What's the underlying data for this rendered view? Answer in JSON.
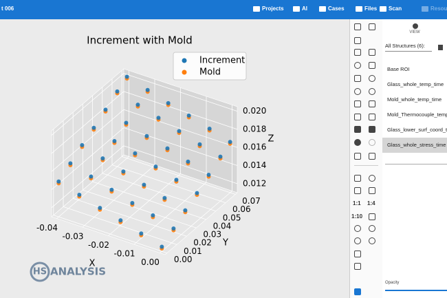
{
  "header": {
    "title": "t 006",
    "nav": [
      "Projects",
      "AI",
      "Cases",
      "Files",
      "Scan",
      "Resou"
    ]
  },
  "chart_data": {
    "type": "scatter3d",
    "title": "Increment with Mold",
    "xlabel": "X",
    "ylabel": "Y",
    "zlabel": "Z",
    "xlim": [
      -0.042,
      0.002
    ],
    "ylim": [
      -0.002,
      0.072
    ],
    "zlim": [
      0.011,
      0.0205
    ],
    "xticks": [
      -0.04,
      -0.03,
      -0.02,
      -0.01,
      {
        "value": 0,
        "label": "0.00"
      }
    ],
    "yticks": [
      {
        "value": 0,
        "label": "0.00"
      },
      0.01,
      0.02,
      0.03,
      0.04,
      0.05,
      0.06,
      0.07
    ],
    "zticks": [
      0.012,
      0.014,
      0.016,
      0.018,
      {
        "value": 0.02,
        "label": "0.020"
      }
    ],
    "grid": true,
    "series": [
      {
        "name": "Increment",
        "color": "#1f77b4",
        "x": [
          -0.04,
          -0.04,
          -0.04,
          -0.04,
          -0.04,
          -0.04,
          -0.04,
          -0.032,
          -0.032,
          -0.032,
          -0.032,
          -0.032,
          -0.032,
          -0.032,
          -0.024,
          -0.024,
          -0.024,
          -0.024,
          -0.024,
          -0.024,
          -0.024,
          -0.016,
          -0.016,
          -0.016,
          -0.016,
          -0.016,
          -0.016,
          -0.016,
          -0.008,
          -0.008,
          -0.008,
          -0.008,
          -0.008,
          -0.008,
          -0.008,
          0,
          0,
          0,
          0,
          0,
          0,
          0
        ],
        "y": [
          0,
          0.012,
          0.024,
          0.036,
          0.048,
          0.06,
          0.07,
          0,
          0.012,
          0.024,
          0.036,
          0.048,
          0.06,
          0.07,
          0,
          0.012,
          0.024,
          0.036,
          0.048,
          0.06,
          0.07,
          0,
          0.012,
          0.024,
          0.036,
          0.048,
          0.06,
          0.07,
          0,
          0.012,
          0.024,
          0.036,
          0.048,
          0.06,
          0.07,
          0,
          0.012,
          0.024,
          0.036,
          0.048,
          0.06,
          0.07
        ],
        "z": [
          0.0149,
          0.0158,
          0.0167,
          0.0175,
          0.0184,
          0.0193,
          0.02,
          0.0142,
          0.0151,
          0.016,
          0.0168,
          0.0177,
          0.0186,
          0.0193,
          0.0135,
          0.0144,
          0.0153,
          0.0162,
          0.017,
          0.0179,
          0.0186,
          0.0129,
          0.0137,
          0.0146,
          0.0155,
          0.0164,
          0.0172,
          0.018,
          0.0122,
          0.0131,
          0.0139,
          0.0148,
          0.0157,
          0.0165,
          0.0173,
          0.0115,
          0.0124,
          0.0133,
          0.0141,
          0.015,
          0.0159,
          0.0166
        ]
      },
      {
        "name": "Mold",
        "color": "#ff7f0e",
        "x": [
          -0.04,
          -0.04,
          -0.04,
          -0.04,
          -0.04,
          -0.04,
          -0.04,
          -0.032,
          -0.032,
          -0.032,
          -0.032,
          -0.032,
          -0.032,
          -0.032,
          -0.024,
          -0.024,
          -0.024,
          -0.024,
          -0.024,
          -0.024,
          -0.024,
          -0.016,
          -0.016,
          -0.016,
          -0.016,
          -0.016,
          -0.016,
          -0.016,
          -0.008,
          -0.008,
          -0.008,
          -0.008,
          -0.008,
          -0.008,
          -0.008,
          0,
          0,
          0,
          0,
          0,
          0,
          0
        ],
        "y": [
          0,
          0.012,
          0.024,
          0.036,
          0.048,
          0.06,
          0.07,
          0,
          0.012,
          0.024,
          0.036,
          0.048,
          0.06,
          0.07,
          0,
          0.012,
          0.024,
          0.036,
          0.048,
          0.06,
          0.07,
          0,
          0.012,
          0.024,
          0.036,
          0.048,
          0.06,
          0.07,
          0,
          0.012,
          0.024,
          0.036,
          0.048,
          0.06,
          0.07,
          0,
          0.012,
          0.024,
          0.036,
          0.048,
          0.06,
          0.07
        ],
        "z": [
          0.0147,
          0.0156,
          0.0165,
          0.0173,
          0.0182,
          0.0191,
          0.0198,
          0.014,
          0.0149,
          0.0158,
          0.0166,
          0.0175,
          0.0184,
          0.0191,
          0.0133,
          0.0142,
          0.0151,
          0.016,
          0.0168,
          0.0177,
          0.0184,
          0.0127,
          0.0135,
          0.0144,
          0.0153,
          0.0162,
          0.017,
          0.0178,
          0.012,
          0.0129,
          0.0137,
          0.0146,
          0.0155,
          0.0163,
          0.0171,
          0.0113,
          0.0122,
          0.0131,
          0.0139,
          0.0148,
          0.0157,
          0.0164
        ]
      }
    ]
  },
  "logo": {
    "mark": "HS",
    "text": "ANALYSIS"
  },
  "toolbar": {
    "zoom": [
      "1:1",
      "1:4",
      "1:10"
    ]
  },
  "structures": {
    "view": "VIEW",
    "filter": "All Structures (6):",
    "items": [
      "Base ROI",
      "Glass_whole_temp_time",
      "Mold_whole_temp_time",
      "Mold_Thermocouple_temp",
      "Glass_lower_surf_coord_t",
      "Glass_whole_stress_time"
    ],
    "opacity": "Opacity"
  }
}
